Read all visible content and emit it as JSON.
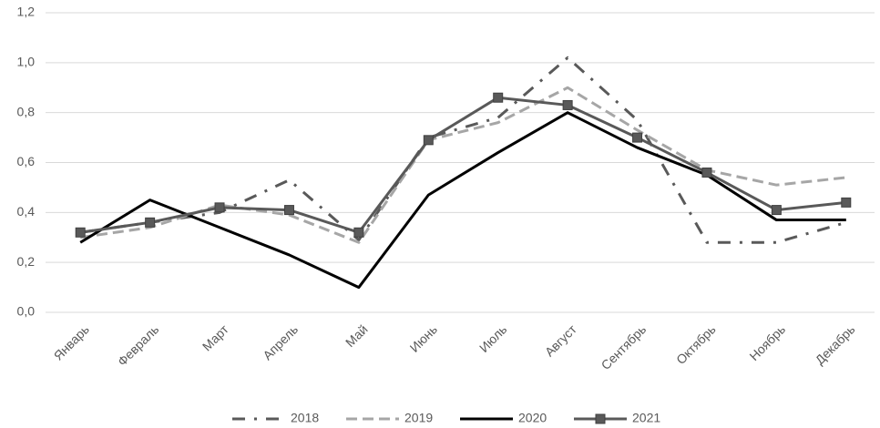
{
  "chart_data": {
    "type": "line",
    "categories": [
      "Январь",
      "Февраль",
      "Март",
      "Апрель",
      "Май",
      "Июнь",
      "Июль",
      "Август",
      "Сентябрь",
      "Октябрь",
      "Ноябрь",
      "Декабрь"
    ],
    "series": [
      {
        "name": "2018",
        "color": "#595959",
        "line_style": "dashdot",
        "marker": "none",
        "values": [
          0.32,
          0.36,
          0.4,
          0.53,
          0.29,
          0.7,
          0.78,
          1.02,
          0.77,
          0.28,
          0.28,
          0.36
        ]
      },
      {
        "name": "2019",
        "color": "#a6a6a6",
        "line_style": "dashed",
        "marker": "none",
        "values": [
          0.3,
          0.34,
          0.43,
          0.39,
          0.28,
          0.69,
          0.76,
          0.9,
          0.73,
          0.57,
          0.51,
          0.54
        ]
      },
      {
        "name": "2020",
        "color": "#000000",
        "line_style": "solid",
        "marker": "none",
        "values": [
          0.28,
          0.45,
          0.34,
          0.23,
          0.1,
          0.47,
          0.64,
          0.8,
          0.66,
          0.55,
          0.37,
          0.37
        ]
      },
      {
        "name": "2021",
        "color": "#595959",
        "line_style": "solid",
        "marker": "square",
        "values": [
          0.32,
          0.36,
          0.42,
          0.41,
          0.32,
          0.69,
          0.86,
          0.83,
          0.7,
          0.56,
          0.41,
          0.44
        ]
      }
    ],
    "ylim": [
      0,
      1.2
    ],
    "yticks": [
      {
        "value": 0,
        "label": "0,0"
      },
      {
        "value": 0.2,
        "label": "0,2"
      },
      {
        "value": 0.4,
        "label": "0,4"
      },
      {
        "value": 0.6,
        "label": "0,6"
      },
      {
        "value": 0.8,
        "label": "0,8"
      },
      {
        "value": 1.0,
        "label": "1,0"
      },
      {
        "value": 1.2,
        "label": "1,2"
      }
    ],
    "grid": true,
    "legend": "bottom"
  }
}
